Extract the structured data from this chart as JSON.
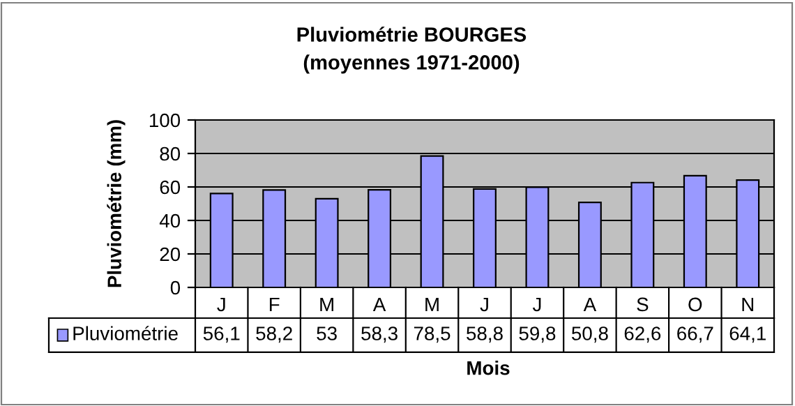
{
  "chart_data": {
    "type": "bar",
    "title": "Pluviométrie BOURGES\n(moyennes 1971-2000)",
    "xlabel": "Mois",
    "ylabel": "Pluviométrie (mm)",
    "categories": [
      "J",
      "F",
      "M",
      "A",
      "M",
      "J",
      "J",
      "A",
      "S",
      "O",
      "N"
    ],
    "series": [
      {
        "name": "Pluviométrie",
        "color": "#9999ff",
        "values": [
          56.1,
          58.2,
          53,
          58.3,
          78.5,
          58.8,
          59.8,
          50.8,
          62.6,
          66.7,
          64.1
        ],
        "value_labels": [
          "56,1",
          "58,2",
          "53",
          "58,3",
          "78,5",
          "58,8",
          "59,8",
          "50,8",
          "62,6",
          "66,7",
          "64,1"
        ]
      }
    ],
    "ylim": [
      0,
      100
    ],
    "yticks": [
      0,
      20,
      40,
      60,
      80,
      100
    ],
    "grid": "y",
    "legend": "bottom"
  }
}
